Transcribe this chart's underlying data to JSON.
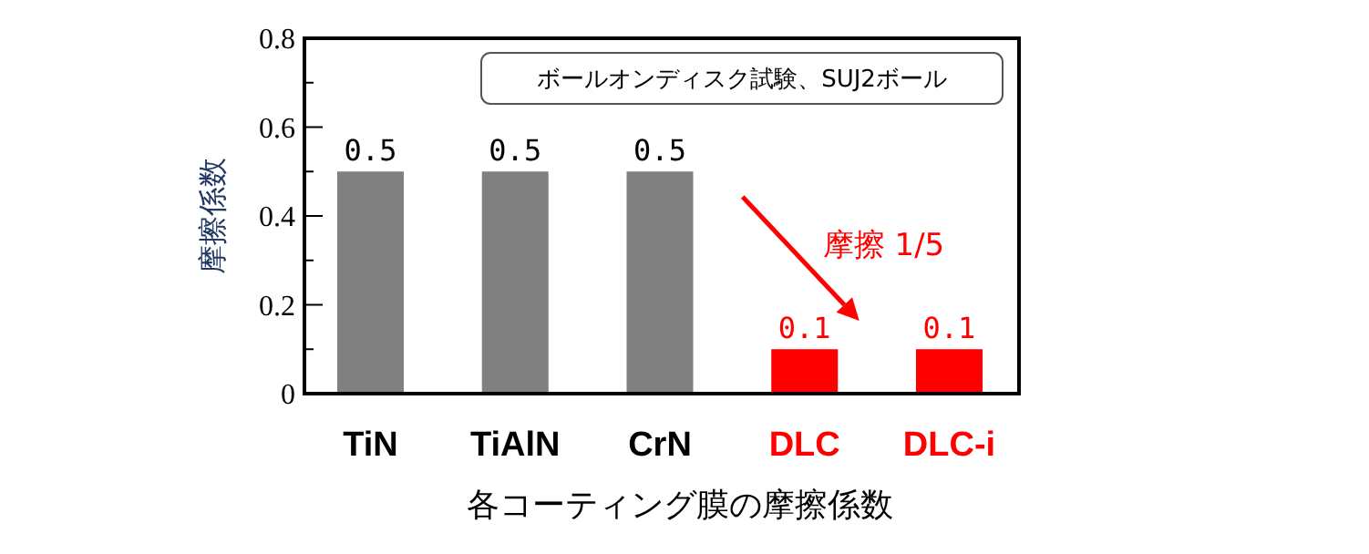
{
  "chart_data": {
    "type": "bar",
    "categories": [
      "TiN",
      "TiAlN",
      "CrN",
      "DLC",
      "DLC-i"
    ],
    "values": [
      0.5,
      0.5,
      0.5,
      0.1,
      0.1
    ],
    "colors": [
      "#808080",
      "#808080",
      "#808080",
      "#ff0000",
      "#ff0000"
    ],
    "ylabel": "摩擦係数",
    "xlabel": "各コーティング膜の摩擦係数",
    "ylim": [
      0,
      0.8
    ],
    "yticks": [
      0,
      {
        "value": 0.1,
        "label": null
      },
      0.2,
      {
        "value": 0.3,
        "label": null
      },
      0.4,
      {
        "value": 0.5,
        "label": null
      },
      0.6,
      {
        "value": 0.7,
        "label": null
      },
      0.8
    ],
    "data_labels": true,
    "grid": false,
    "annotations": [
      "ボールオンディスク試験、SUJ2ボール",
      "摩擦 1/5"
    ]
  }
}
